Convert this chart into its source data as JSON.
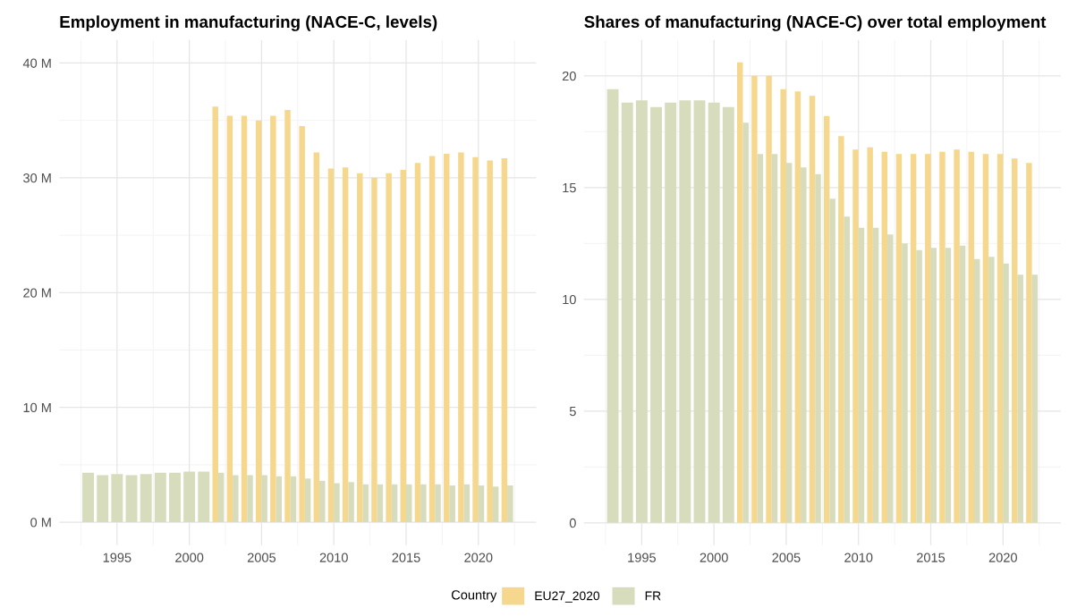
{
  "chart_data": [
    {
      "type": "bar",
      "title": "Employment in manufacturing (NACE-C, levels)",
      "x": [
        1993,
        1994,
        1995,
        1996,
        1997,
        1998,
        1999,
        2000,
        2001,
        2002,
        2003,
        2004,
        2005,
        2006,
        2007,
        2008,
        2009,
        2010,
        2011,
        2012,
        2013,
        2014,
        2015,
        2016,
        2017,
        2018,
        2019,
        2020,
        2021,
        2022
      ],
      "series": [
        {
          "name": "EU27_2020",
          "color": "#f5d78e",
          "values": [
            null,
            null,
            null,
            null,
            null,
            null,
            null,
            null,
            null,
            36.2,
            35.4,
            35.4,
            35.0,
            35.4,
            35.9,
            34.5,
            32.2,
            30.8,
            30.9,
            30.4,
            30.0,
            30.4,
            30.7,
            31.3,
            31.9,
            32.1,
            32.2,
            31.8,
            31.5,
            31.7
          ]
        },
        {
          "name": "FR",
          "color": "#d6dcbc",
          "values": [
            4.3,
            4.1,
            4.2,
            4.1,
            4.2,
            4.3,
            4.3,
            4.4,
            4.4,
            4.3,
            4.1,
            4.1,
            4.1,
            4.0,
            4.0,
            3.8,
            3.6,
            3.4,
            3.5,
            3.3,
            3.3,
            3.3,
            3.3,
            3.3,
            3.3,
            3.2,
            3.3,
            3.2,
            3.1,
            3.2
          ]
        }
      ],
      "xlim": [
        1991,
        2024
      ],
      "xticks": [
        1995,
        2000,
        2005,
        2010,
        2015,
        2020
      ],
      "ylim": [
        -2,
        42
      ],
      "yticks": [
        {
          "value": 0,
          "label": "0 M"
        },
        {
          "value": 10,
          "label": "10 M"
        },
        {
          "value": 20,
          "label": "20 M"
        },
        {
          "value": 30,
          "label": "30 M"
        },
        {
          "value": 40,
          "label": "40 M"
        }
      ],
      "grid": true,
      "legend": "bottom",
      "legend_title": "Country"
    },
    {
      "type": "bar",
      "title": "Shares of manufacturing (NACE-C) over total employment",
      "x": [
        1993,
        1994,
        1995,
        1996,
        1997,
        1998,
        1999,
        2000,
        2001,
        2002,
        2003,
        2004,
        2005,
        2006,
        2007,
        2008,
        2009,
        2010,
        2011,
        2012,
        2013,
        2014,
        2015,
        2016,
        2017,
        2018,
        2019,
        2020,
        2021,
        2022
      ],
      "series": [
        {
          "color": "#f5d78e",
          "values": [
            null,
            null,
            null,
            null,
            null,
            null,
            null,
            null,
            null,
            20.6,
            20.0,
            20.0,
            19.4,
            19.3,
            19.1,
            18.2,
            17.3,
            16.7,
            16.8,
            16.6,
            16.5,
            16.5,
            16.5,
            16.6,
            16.7,
            16.6,
            16.5,
            16.5,
            16.3,
            16.1
          ]
        },
        {
          "color": "#d6dcbc",
          "values": [
            19.4,
            18.8,
            18.9,
            18.6,
            18.8,
            18.9,
            18.9,
            18.8,
            18.6,
            17.9,
            16.5,
            16.5,
            16.1,
            15.9,
            15.6,
            14.5,
            13.7,
            13.2,
            13.2,
            12.9,
            12.5,
            12.2,
            12.3,
            12.3,
            12.4,
            11.8,
            11.9,
            11.6,
            11.1,
            11.1
          ]
        }
      ],
      "xlim": [
        1991,
        2024
      ],
      "xticks": [
        1995,
        2000,
        2005,
        2010,
        2015,
        2020
      ],
      "ylim": [
        -1,
        21.6
      ],
      "yticks": [
        0,
        5,
        10,
        15,
        20
      ],
      "grid": true
    }
  ]
}
